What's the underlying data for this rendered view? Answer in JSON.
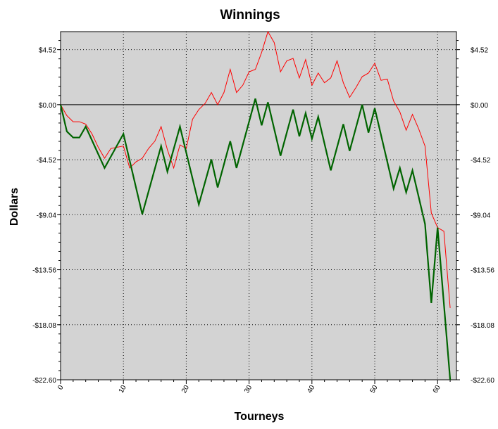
{
  "chart_data": {
    "type": "line",
    "title": "Winnings",
    "xlabel": "Tourneys",
    "ylabel": "Dollars",
    "xlim": [
      0,
      63
    ],
    "ylim": [
      -22.6,
      6.0
    ],
    "x_ticks": [
      0,
      10,
      20,
      30,
      40,
      50,
      60
    ],
    "x_tick_labels": [
      "0",
      "10",
      "20",
      "30",
      "40",
      "50",
      "60"
    ],
    "y_ticks": [
      4.52,
      0,
      -4.52,
      -9.04,
      -13.56,
      -18.08,
      -22.6
    ],
    "y_tick_labels": [
      "$4.52",
      "$0.00",
      "-$4.52",
      "-$9.04",
      "-$13.56",
      "-$18.08",
      "-$22.60"
    ],
    "grid": true,
    "zero_line": 0,
    "colors": {
      "background": "#d3d3d3",
      "zero_line": "#000000",
      "grid": "#000000"
    },
    "series": [
      {
        "color": "#ff0000",
        "line_width": 1,
        "x": [
          0,
          1,
          2,
          3,
          4,
          5,
          6,
          7,
          8,
          9,
          10,
          11,
          12,
          13,
          14,
          15,
          16,
          17,
          18,
          19,
          20,
          21,
          22,
          23,
          24,
          25,
          26,
          27,
          28,
          29,
          30,
          31,
          32,
          33,
          34,
          35,
          36,
          37,
          38,
          39,
          40,
          41,
          42,
          43,
          44,
          45,
          46,
          47,
          48,
          49,
          50,
          51,
          52,
          53,
          54,
          55,
          56,
          57,
          58,
          59,
          60,
          61,
          62
        ],
        "values": [
          0,
          -0.9,
          -1.4,
          -1.4,
          -1.6,
          -2.4,
          -3.5,
          -4.4,
          -3.6,
          -3.5,
          -3.4,
          -5.2,
          -4.7,
          -4.4,
          -3.6,
          -3.0,
          -1.8,
          -3.7,
          -5.2,
          -3.3,
          -3.6,
          -1.2,
          -0.4,
          0.1,
          1.0,
          0.0,
          1.0,
          2.9,
          1.0,
          1.6,
          2.7,
          2.9,
          4.3,
          6.0,
          5.1,
          2.7,
          3.6,
          3.8,
          2.2,
          3.7,
          1.6,
          2.6,
          1.8,
          2.2,
          3.6,
          1.8,
          0.6,
          1.4,
          2.3,
          2.6,
          3.4,
          2.0,
          2.1,
          0.3,
          -0.6,
          -2.1,
          -0.8,
          -2.0,
          -3.4,
          -8.9,
          -10.1,
          -10.4,
          -16.7
        ]
      },
      {
        "color": "#006400",
        "line_width": 2.2,
        "x": [
          0,
          1,
          2,
          3,
          4,
          7,
          10,
          13,
          16,
          17,
          19,
          22,
          24,
          25,
          27,
          28,
          31,
          32,
          33,
          35,
          37,
          38,
          39,
          40,
          41,
          43,
          45,
          46,
          48,
          49,
          50,
          53,
          54,
          55,
          56,
          58,
          59,
          60,
          62
        ],
        "values": [
          0,
          -2.2,
          -2.7,
          -2.7,
          -1.8,
          -5.2,
          -2.4,
          -9.0,
          -3.4,
          -5.5,
          -1.8,
          -8.2,
          -4.5,
          -6.8,
          -3.0,
          -5.2,
          0.5,
          -1.7,
          0.2,
          -4.2,
          -0.4,
          -2.6,
          -0.7,
          -2.8,
          -1.0,
          -5.4,
          -1.6,
          -3.8,
          0.0,
          -2.3,
          -0.3,
          -6.9,
          -5.2,
          -7.2,
          -5.4,
          -9.8,
          -16.3,
          -10.1,
          -22.6
        ]
      }
    ]
  }
}
